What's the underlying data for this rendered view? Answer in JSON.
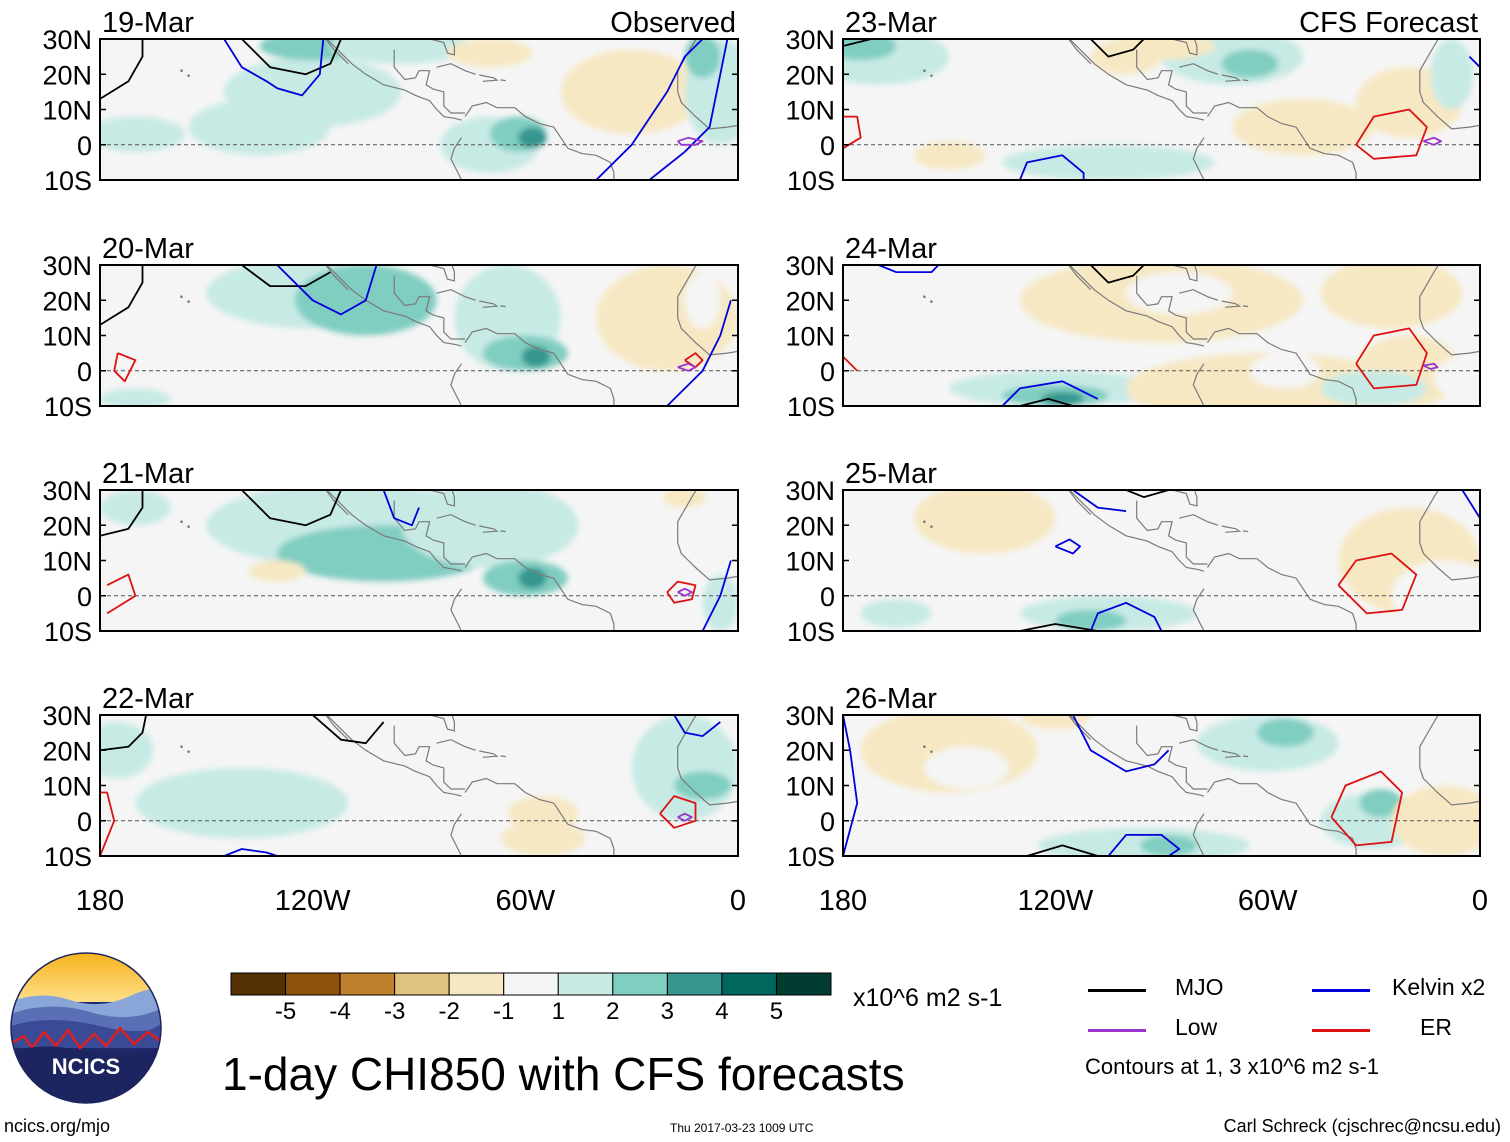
{
  "titles": {
    "observed": "Observed",
    "forecast": "CFS Forecast"
  },
  "lat_labels": [
    "30N",
    "20N",
    "10N",
    "0",
    "10S"
  ],
  "lon_labels": [
    "180",
    "120W",
    "60W",
    "0"
  ],
  "panels": [
    {
      "date": "19-Mar",
      "column": "observed"
    },
    {
      "date": "20-Mar",
      "column": "observed"
    },
    {
      "date": "21-Mar",
      "column": "observed"
    },
    {
      "date": "22-Mar",
      "column": "observed"
    },
    {
      "date": "23-Mar",
      "column": "forecast"
    },
    {
      "date": "24-Mar",
      "column": "forecast"
    },
    {
      "date": "25-Mar",
      "column": "forecast"
    },
    {
      "date": "26-Mar",
      "column": "forecast"
    }
  ],
  "colorbar": {
    "colors": [
      "#543005",
      "#8c510a",
      "#bf812d",
      "#dfc27d",
      "#f6e8c3",
      "#f5f5f5",
      "#c7eae5",
      "#80cdc1",
      "#35978f",
      "#01665e",
      "#003c30"
    ],
    "ticks": [
      "-5",
      "-4",
      "-3",
      "-2",
      "-1",
      "1",
      "2",
      "3",
      "4",
      "5"
    ],
    "units": "x10^6 m2 s-1"
  },
  "legend": {
    "items": [
      {
        "label": "MJO",
        "color": "#000000"
      },
      {
        "label": "Kelvin x2",
        "color": "#0000dd"
      },
      {
        "label": "Low",
        "color": "#9933cc"
      },
      {
        "label": "ER",
        "color": "#dd1111"
      }
    ],
    "note": "Contours at 1, 3 x10^6 m2 s-1"
  },
  "main_title": "1-day CHI850 with CFS forecasts",
  "logo": {
    "text": "NCICS"
  },
  "footer": {
    "url": "ncics.org/mjo",
    "timestamp": "Thu 2017-03-23 1009 UTC",
    "credit": "Carl Schreck (cjschrec@ncsu.edu)"
  }
}
